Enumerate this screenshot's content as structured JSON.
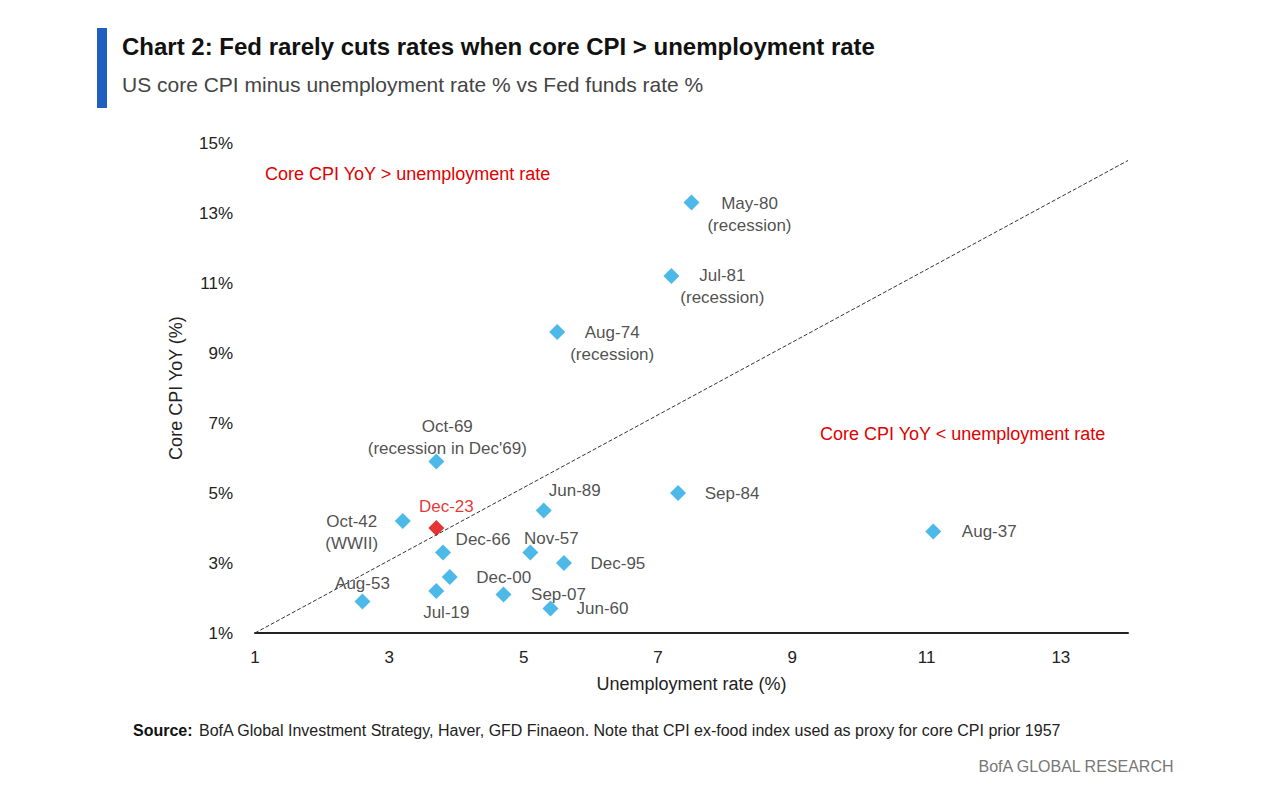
{
  "chart_data": {
    "type": "scatter",
    "title": "Chart 2: Fed rarely cuts rates when core CPI > unemployment rate",
    "subtitle": "US core CPI minus unemployment rate % vs Fed funds rate %",
    "x_label": "Unemployment rate (%)",
    "y_label": "Core CPI YoY (%)",
    "annotations": [
      "Core CPI YoY > unemployment rate",
      "Core CPI YoY < unemployment rate"
    ],
    "source_label": "Source:",
    "source": "BofA Global Investment Strategy, Haver, GFD Finaeon. Note that CPI ex-food index used as proxy for core CPI prior 1957",
    "footer": "BofA GLOBAL RESEARCH",
    "marker": "diamond",
    "grid": false,
    "labels": [
      "May-80\n(recession)",
      "Jul-81\n(recession)",
      "Aug-74\n(recession)",
      "Oct-69\n(recession in Dec'69)",
      "Dec-23",
      "Oct-42\n(WWII)",
      "Jun-89",
      "Sep-84",
      "Aug-37",
      "Dec-66",
      "Nov-57",
      "Dec-95",
      "Aug-53",
      "Dec-00",
      "Jul-19",
      "Sep-07",
      "Jun-60"
    ],
    "x": [
      7.5,
      7.2,
      5.5,
      3.7,
      3.7,
      3.2,
      5.3,
      7.3,
      11.1,
      3.8,
      5.1,
      5.6,
      2.6,
      3.9,
      3.7,
      4.7,
      5.4
    ],
    "values": [
      13.3,
      11.2,
      9.6,
      5.9,
      4.0,
      4.2,
      4.5,
      5.0,
      3.9,
      3.3,
      3.3,
      3.0,
      1.9,
      2.6,
      2.2,
      2.1,
      1.7
    ],
    "colors": [
      "#1fa8e4",
      "#1fa8e4",
      "#1fa8e4",
      "#1fa8e4",
      "#e00000",
      "#1fa8e4",
      "#1fa8e4",
      "#1fa8e4",
      "#1fa8e4",
      "#1fa8e4",
      "#1fa8e4",
      "#1fa8e4",
      "#1fa8e4",
      "#1fa8e4",
      "#1fa8e4",
      "#1fa8e4",
      "#1fa8e4"
    ],
    "reference_line": {
      "x": [
        1,
        14
      ],
      "y": [
        1,
        14.5
      ],
      "line_style": "dashed",
      "color": "#333333"
    },
    "xlim": [
      1,
      14
    ],
    "xticks": [
      1,
      3,
      5,
      7,
      9,
      11,
      13
    ],
    "ylim": [
      1,
      15
    ],
    "yticks": [
      {
        "value": 1,
        "label": "1%"
      },
      {
        "value": 3,
        "label": "3%"
      },
      {
        "value": 5,
        "label": "5%"
      },
      {
        "value": 7,
        "label": "7%"
      },
      {
        "value": 9,
        "label": "9%"
      },
      {
        "value": 11,
        "label": "11%"
      },
      {
        "value": 13,
        "label": "13%"
      },
      {
        "value": 15,
        "label": "15%"
      }
    ]
  }
}
